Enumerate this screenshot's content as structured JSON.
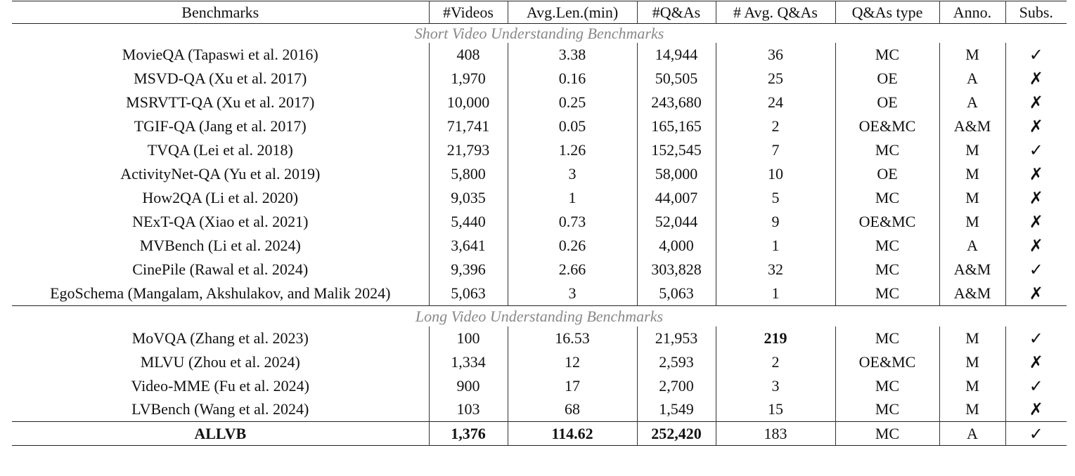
{
  "columns": [
    "Benchmarks",
    "#Videos",
    "Avg.Len.(min)",
    "#Q&As",
    "# Avg. Q&As",
    "Q&As type",
    "Anno.",
    "Subs."
  ],
  "sections": [
    {
      "title": "Short Video Understanding Benchmarks",
      "rows": [
        {
          "name": "MovieQA (Tapaswi et al. 2016)",
          "videos": "408",
          "avg_len": "3.38",
          "qas": "14,944",
          "avg_qas": "36",
          "type": "MC",
          "anno": "M",
          "subs": "yes"
        },
        {
          "name": "MSVD-QA (Xu et al. 2017)",
          "videos": "1,970",
          "avg_len": "0.16",
          "qas": "50,505",
          "avg_qas": "25",
          "type": "OE",
          "anno": "A",
          "subs": "no"
        },
        {
          "name": "MSRVTT-QA (Xu et al. 2017)",
          "videos": "10,000",
          "avg_len": "0.25",
          "qas": "243,680",
          "avg_qas": "24",
          "type": "OE",
          "anno": "A",
          "subs": "no"
        },
        {
          "name": "TGIF-QA (Jang et al. 2017)",
          "videos": "71,741",
          "avg_len": "0.05",
          "qas": "165,165",
          "avg_qas": "2",
          "type": "OE&MC",
          "anno": "A&M",
          "subs": "no"
        },
        {
          "name": "TVQA (Lei et al. 2018)",
          "videos": "21,793",
          "avg_len": "1.26",
          "qas": "152,545",
          "avg_qas": "7",
          "type": "MC",
          "anno": "M",
          "subs": "yes"
        },
        {
          "name": "ActivityNet-QA (Yu et al. 2019)",
          "videos": "5,800",
          "avg_len": "3",
          "qas": "58,000",
          "avg_qas": "10",
          "type": "OE",
          "anno": "M",
          "subs": "no"
        },
        {
          "name": "How2QA (Li et al. 2020)",
          "videos": "9,035",
          "avg_len": "1",
          "qas": "44,007",
          "avg_qas": "5",
          "type": "MC",
          "anno": "M",
          "subs": "no"
        },
        {
          "name": "NExT-QA (Xiao et al. 2021)",
          "videos": "5,440",
          "avg_len": "0.73",
          "qas": "52,044",
          "avg_qas": "9",
          "type": "OE&MC",
          "anno": "M",
          "subs": "no"
        },
        {
          "name": "MVBench (Li et al. 2024)",
          "videos": "3,641",
          "avg_len": "0.26",
          "qas": "4,000",
          "avg_qas": "1",
          "type": "MC",
          "anno": "A",
          "subs": "no"
        },
        {
          "name": "CinePile (Rawal et al. 2024)",
          "videos": "9,396",
          "avg_len": "2.66",
          "qas": "303,828",
          "avg_qas": "32",
          "type": "MC",
          "anno": "A&M",
          "subs": "yes"
        },
        {
          "name": "EgoSchema (Mangalam, Akshulakov, and Malik 2024)",
          "videos": "5,063",
          "avg_len": "3",
          "qas": "5,063",
          "avg_qas": "1",
          "type": "MC",
          "anno": "A&M",
          "subs": "no"
        }
      ]
    },
    {
      "title": "Long Video Understanding Benchmarks",
      "rows": [
        {
          "name": "MoVQA (Zhang et al. 2023)",
          "videos": "100",
          "avg_len": "16.53",
          "qas": "21,953",
          "avg_qas": "219",
          "type": "MC",
          "anno": "M",
          "subs": "yes",
          "bold": [
            "avg_qas"
          ]
        },
        {
          "name": "MLVU (Zhou et al. 2024)",
          "videos": "1,334",
          "avg_len": "12",
          "qas": "2,593",
          "avg_qas": "2",
          "type": "OE&MC",
          "anno": "M",
          "subs": "no"
        },
        {
          "name": "Video-MME (Fu et al. 2024)",
          "videos": "900",
          "avg_len": "17",
          "qas": "2,700",
          "avg_qas": "3",
          "type": "MC",
          "anno": "M",
          "subs": "yes"
        },
        {
          "name": "LVBench (Wang et al. 2024)",
          "videos": "103",
          "avg_len": "68",
          "qas": "1,549",
          "avg_qas": "15",
          "type": "MC",
          "anno": "M",
          "subs": "no"
        }
      ]
    }
  ],
  "total": {
    "name": "ALLVB",
    "videos": "1,376",
    "avg_len": "114.62",
    "qas": "252,420",
    "avg_qas": "183",
    "type": "MC",
    "anno": "A",
    "subs": "yes",
    "bold": [
      "name",
      "videos",
      "avg_len",
      "qas"
    ]
  },
  "marks": {
    "yes": "✓",
    "no": "✗"
  }
}
